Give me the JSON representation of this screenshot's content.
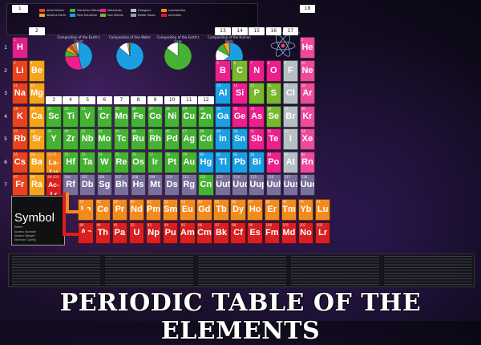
{
  "title": "PERIODIC TABLE OF THE ELEMENTS",
  "groups": [
    "1",
    "2",
    "3",
    "4",
    "5",
    "6",
    "7",
    "8",
    "9",
    "10",
    "11",
    "12",
    "13",
    "14",
    "15",
    "16",
    "17",
    "18"
  ],
  "periods": [
    "1",
    "2",
    "3",
    "4",
    "5",
    "6",
    "7"
  ],
  "colors": {
    "alkali": "#e8421f",
    "alkaline": "#f6a41c",
    "transition": "#46b234",
    "post": "#1a9fe3",
    "metalloid": "#ec1f8c",
    "nonmetal": "#77b82e",
    "noble": "#9c9ea1",
    "halogen": "#b5c0c2",
    "lanthanide": "#f28b1e",
    "actinide": "#d91f1f",
    "unknown": "#7a6e9a",
    "hydrogen": "#e0208c",
    "heliumPink": "#ec4a9a"
  },
  "legend": [
    {
      "label": "Alkali Metals",
      "color": "#e8421f"
    },
    {
      "label": "Alkaline Earth",
      "color": "#f6a41c"
    },
    {
      "label": "Transition Metals",
      "color": "#46b234"
    },
    {
      "label": "Post-Transition",
      "color": "#1a9fe3"
    },
    {
      "label": "Metalloids",
      "color": "#ec1f8c"
    },
    {
      "label": "Non Metals",
      "color": "#77b82e"
    },
    {
      "label": "Halogens",
      "color": "#b5c0c2"
    },
    {
      "label": "Noble Gases",
      "color": "#9c9ea1"
    },
    {
      "label": "Lanthanides",
      "color": "#f28b1e"
    },
    {
      "label": "Actinides",
      "color": "#d91f1f"
    }
  ],
  "pies": [
    {
      "title": "Composition of the Earth's Crust",
      "slices": [
        0.46,
        0.28,
        0.08,
        0.05,
        0.04,
        0.03,
        0.03,
        0.03
      ],
      "colors": [
        "#1a9fe3",
        "#ec1f8c",
        "#46b234",
        "#f6a41c",
        "#e8421f",
        "#9c9ea1",
        "#f28b1e",
        "#ffffff"
      ]
    },
    {
      "title": "Composition of Sea Water",
      "slices": [
        0.86,
        0.11,
        0.02,
        0.01
      ],
      "colors": [
        "#1a9fe3",
        "#ffffff",
        "#f6a41c",
        "#46b234"
      ]
    },
    {
      "title": "Composition of the Earth's Core",
      "slices": [
        0.85,
        0.15
      ],
      "colors": [
        "#46b234",
        "#ffffff"
      ]
    },
    {
      "title": "Composition of the Human Body",
      "slices": [
        0.65,
        0.18,
        0.1,
        0.07
      ],
      "colors": [
        "#1a9fe3",
        "#ffffff",
        "#46b234",
        "#f6a41c"
      ]
    }
  ],
  "atom_label": "Structure of an Atom",
  "symbol_box": {
    "symbol": "Symbol",
    "name": "Name",
    "lines": [
      "Atomic Number",
      "Atomic Weight",
      "Electron Config",
      "Oxidation States"
    ]
  },
  "elements": [
    {
      "s": "H",
      "n": 1,
      "r": 1,
      "c": 1,
      "t": "hydrogen"
    },
    {
      "s": "He",
      "n": 2,
      "r": 1,
      "c": 18,
      "t": "heliumPink"
    },
    {
      "s": "Li",
      "n": 3,
      "r": 2,
      "c": 1,
      "t": "alkali"
    },
    {
      "s": "Be",
      "n": 4,
      "r": 2,
      "c": 2,
      "t": "alkaline"
    },
    {
      "s": "B",
      "n": 5,
      "r": 2,
      "c": 13,
      "t": "metalloid"
    },
    {
      "s": "C",
      "n": 6,
      "r": 2,
      "c": 14,
      "t": "nonmetal"
    },
    {
      "s": "N",
      "n": 7,
      "r": 2,
      "c": 15,
      "t": "metalloid"
    },
    {
      "s": "O",
      "n": 8,
      "r": 2,
      "c": 16,
      "t": "metalloid"
    },
    {
      "s": "F",
      "n": 9,
      "r": 2,
      "c": 17,
      "t": "halogen"
    },
    {
      "s": "Ne",
      "n": 10,
      "r": 2,
      "c": 18,
      "t": "heliumPink"
    },
    {
      "s": "Na",
      "n": 11,
      "r": 3,
      "c": 1,
      "t": "alkali"
    },
    {
      "s": "Mg",
      "n": 12,
      "r": 3,
      "c": 2,
      "t": "alkaline"
    },
    {
      "s": "Al",
      "n": 13,
      "r": 3,
      "c": 13,
      "t": "post"
    },
    {
      "s": "Si",
      "n": 14,
      "r": 3,
      "c": 14,
      "t": "metalloid"
    },
    {
      "s": "P",
      "n": 15,
      "r": 3,
      "c": 15,
      "t": "nonmetal"
    },
    {
      "s": "S",
      "n": 16,
      "r": 3,
      "c": 16,
      "t": "nonmetal"
    },
    {
      "s": "Cl",
      "n": 17,
      "r": 3,
      "c": 17,
      "t": "halogen"
    },
    {
      "s": "Ar",
      "n": 18,
      "r": 3,
      "c": 18,
      "t": "heliumPink"
    },
    {
      "s": "K",
      "n": 19,
      "r": 4,
      "c": 1,
      "t": "alkali"
    },
    {
      "s": "Ca",
      "n": 20,
      "r": 4,
      "c": 2,
      "t": "alkaline"
    },
    {
      "s": "Sc",
      "n": 21,
      "r": 4,
      "c": 3,
      "t": "transition"
    },
    {
      "s": "Ti",
      "n": 22,
      "r": 4,
      "c": 4,
      "t": "transition"
    },
    {
      "s": "V",
      "n": 23,
      "r": 4,
      "c": 5,
      "t": "transition"
    },
    {
      "s": "Cr",
      "n": 24,
      "r": 4,
      "c": 6,
      "t": "transition"
    },
    {
      "s": "Mn",
      "n": 25,
      "r": 4,
      "c": 7,
      "t": "transition"
    },
    {
      "s": "Fe",
      "n": 26,
      "r": 4,
      "c": 8,
      "t": "transition"
    },
    {
      "s": "Co",
      "n": 27,
      "r": 4,
      "c": 9,
      "t": "transition"
    },
    {
      "s": "Ni",
      "n": 28,
      "r": 4,
      "c": 10,
      "t": "transition"
    },
    {
      "s": "Cu",
      "n": 29,
      "r": 4,
      "c": 11,
      "t": "transition"
    },
    {
      "s": "Zn",
      "n": 30,
      "r": 4,
      "c": 12,
      "t": "transition"
    },
    {
      "s": "Ga",
      "n": 31,
      "r": 4,
      "c": 13,
      "t": "post"
    },
    {
      "s": "Ge",
      "n": 32,
      "r": 4,
      "c": 14,
      "t": "metalloid"
    },
    {
      "s": "As",
      "n": 33,
      "r": 4,
      "c": 15,
      "t": "metalloid"
    },
    {
      "s": "Se",
      "n": 34,
      "r": 4,
      "c": 16,
      "t": "nonmetal"
    },
    {
      "s": "Br",
      "n": 35,
      "r": 4,
      "c": 17,
      "t": "halogen"
    },
    {
      "s": "Kr",
      "n": 36,
      "r": 4,
      "c": 18,
      "t": "heliumPink"
    },
    {
      "s": "Rb",
      "n": 37,
      "r": 5,
      "c": 1,
      "t": "alkali"
    },
    {
      "s": "Sr",
      "n": 38,
      "r": 5,
      "c": 2,
      "t": "alkaline"
    },
    {
      "s": "Y",
      "n": 39,
      "r": 5,
      "c": 3,
      "t": "transition"
    },
    {
      "s": "Zr",
      "n": 40,
      "r": 5,
      "c": 4,
      "t": "transition"
    },
    {
      "s": "Nb",
      "n": 41,
      "r": 5,
      "c": 5,
      "t": "transition"
    },
    {
      "s": "Mo",
      "n": 42,
      "r": 5,
      "c": 6,
      "t": "transition"
    },
    {
      "s": "Tc",
      "n": 43,
      "r": 5,
      "c": 7,
      "t": "transition"
    },
    {
      "s": "Ru",
      "n": 44,
      "r": 5,
      "c": 8,
      "t": "transition"
    },
    {
      "s": "Rh",
      "n": 45,
      "r": 5,
      "c": 9,
      "t": "transition"
    },
    {
      "s": "Pd",
      "n": 46,
      "r": 5,
      "c": 10,
      "t": "transition"
    },
    {
      "s": "Ag",
      "n": 47,
      "r": 5,
      "c": 11,
      "t": "transition"
    },
    {
      "s": "Cd",
      "n": 48,
      "r": 5,
      "c": 12,
      "t": "transition"
    },
    {
      "s": "In",
      "n": 49,
      "r": 5,
      "c": 13,
      "t": "post"
    },
    {
      "s": "Sn",
      "n": 50,
      "r": 5,
      "c": 14,
      "t": "post"
    },
    {
      "s": "Sb",
      "n": 51,
      "r": 5,
      "c": 15,
      "t": "metalloid"
    },
    {
      "s": "Te",
      "n": 52,
      "r": 5,
      "c": 16,
      "t": "metalloid"
    },
    {
      "s": "I",
      "n": 53,
      "r": 5,
      "c": 17,
      "t": "halogen"
    },
    {
      "s": "Xe",
      "n": 54,
      "r": 5,
      "c": 18,
      "t": "heliumPink"
    },
    {
      "s": "Cs",
      "n": 55,
      "r": 6,
      "c": 1,
      "t": "alkali"
    },
    {
      "s": "Ba",
      "n": 56,
      "r": 6,
      "c": 2,
      "t": "alkaline"
    },
    {
      "s": "La-Lu",
      "n": "57-71",
      "r": 6,
      "c": 3,
      "t": "lanthanide",
      "w": 1
    },
    {
      "s": "Hf",
      "n": 72,
      "r": 6,
      "c": 4,
      "t": "transition"
    },
    {
      "s": "Ta",
      "n": 73,
      "r": 6,
      "c": 5,
      "t": "transition"
    },
    {
      "s": "W",
      "n": 74,
      "r": 6,
      "c": 6,
      "t": "transition"
    },
    {
      "s": "Re",
      "n": 75,
      "r": 6,
      "c": 7,
      "t": "transition"
    },
    {
      "s": "Os",
      "n": 76,
      "r": 6,
      "c": 8,
      "t": "transition"
    },
    {
      "s": "Ir",
      "n": 77,
      "r": 6,
      "c": 9,
      "t": "transition"
    },
    {
      "s": "Pt",
      "n": 78,
      "r": 6,
      "c": 10,
      "t": "transition"
    },
    {
      "s": "Au",
      "n": 79,
      "r": 6,
      "c": 11,
      "t": "transition"
    },
    {
      "s": "Hg",
      "n": 80,
      "r": 6,
      "c": 12,
      "t": "post"
    },
    {
      "s": "Tl",
      "n": 81,
      "r": 6,
      "c": 13,
      "t": "post"
    },
    {
      "s": "Pb",
      "n": 82,
      "r": 6,
      "c": 14,
      "t": "post"
    },
    {
      "s": "Bi",
      "n": 83,
      "r": 6,
      "c": 15,
      "t": "post"
    },
    {
      "s": "Po",
      "n": 84,
      "r": 6,
      "c": 16,
      "t": "metalloid"
    },
    {
      "s": "At",
      "n": 85,
      "r": 6,
      "c": 17,
      "t": "halogen"
    },
    {
      "s": "Rn",
      "n": 86,
      "r": 6,
      "c": 18,
      "t": "heliumPink"
    },
    {
      "s": "Fr",
      "n": 87,
      "r": 7,
      "c": 1,
      "t": "alkali"
    },
    {
      "s": "Ra",
      "n": 88,
      "r": 7,
      "c": 2,
      "t": "alkaline"
    },
    {
      "s": "Ac-Lr",
      "n": "89-103",
      "r": 7,
      "c": 3,
      "t": "actinide",
      "w": 1
    },
    {
      "s": "Rf",
      "n": 104,
      "r": 7,
      "c": 4,
      "t": "unknown"
    },
    {
      "s": "Db",
      "n": 105,
      "r": 7,
      "c": 5,
      "t": "unknown"
    },
    {
      "s": "Sg",
      "n": 106,
      "r": 7,
      "c": 6,
      "t": "unknown"
    },
    {
      "s": "Bh",
      "n": 107,
      "r": 7,
      "c": 7,
      "t": "unknown"
    },
    {
      "s": "Hs",
      "n": 108,
      "r": 7,
      "c": 8,
      "t": "unknown"
    },
    {
      "s": "Mt",
      "n": 109,
      "r": 7,
      "c": 9,
      "t": "unknown"
    },
    {
      "s": "Ds",
      "n": 110,
      "r": 7,
      "c": 10,
      "t": "unknown"
    },
    {
      "s": "Rg",
      "n": 111,
      "r": 7,
      "c": 11,
      "t": "unknown"
    },
    {
      "s": "Cn",
      "n": 112,
      "r": 7,
      "c": 12,
      "t": "transition"
    },
    {
      "s": "Uut",
      "n": 113,
      "r": 7,
      "c": 13,
      "t": "unknown"
    },
    {
      "s": "Uuq",
      "n": 114,
      "r": 7,
      "c": 14,
      "t": "unknown"
    },
    {
      "s": "Uup",
      "n": 115,
      "r": 7,
      "c": 15,
      "t": "unknown"
    },
    {
      "s": "Uuh",
      "n": 116,
      "r": 7,
      "c": 16,
      "t": "unknown"
    },
    {
      "s": "Uus",
      "n": 117,
      "r": 7,
      "c": 17,
      "t": "unknown"
    },
    {
      "s": "Uuo",
      "n": 118,
      "r": 7,
      "c": 18,
      "t": "unknown"
    }
  ],
  "lanthanides": [
    "La",
    "Ce",
    "Pr",
    "Nd",
    "Pm",
    "Sm",
    "Eu",
    "Gd",
    "Tb",
    "Dy",
    "Ho",
    "Er",
    "Tm",
    "Yb",
    "Lu"
  ],
  "actinides": [
    "Ac",
    "Th",
    "Pa",
    "U",
    "Np",
    "Pu",
    "Am",
    "Cm",
    "Bk",
    "Cf",
    "Es",
    "Fm",
    "Md",
    "No",
    "Lr"
  ]
}
